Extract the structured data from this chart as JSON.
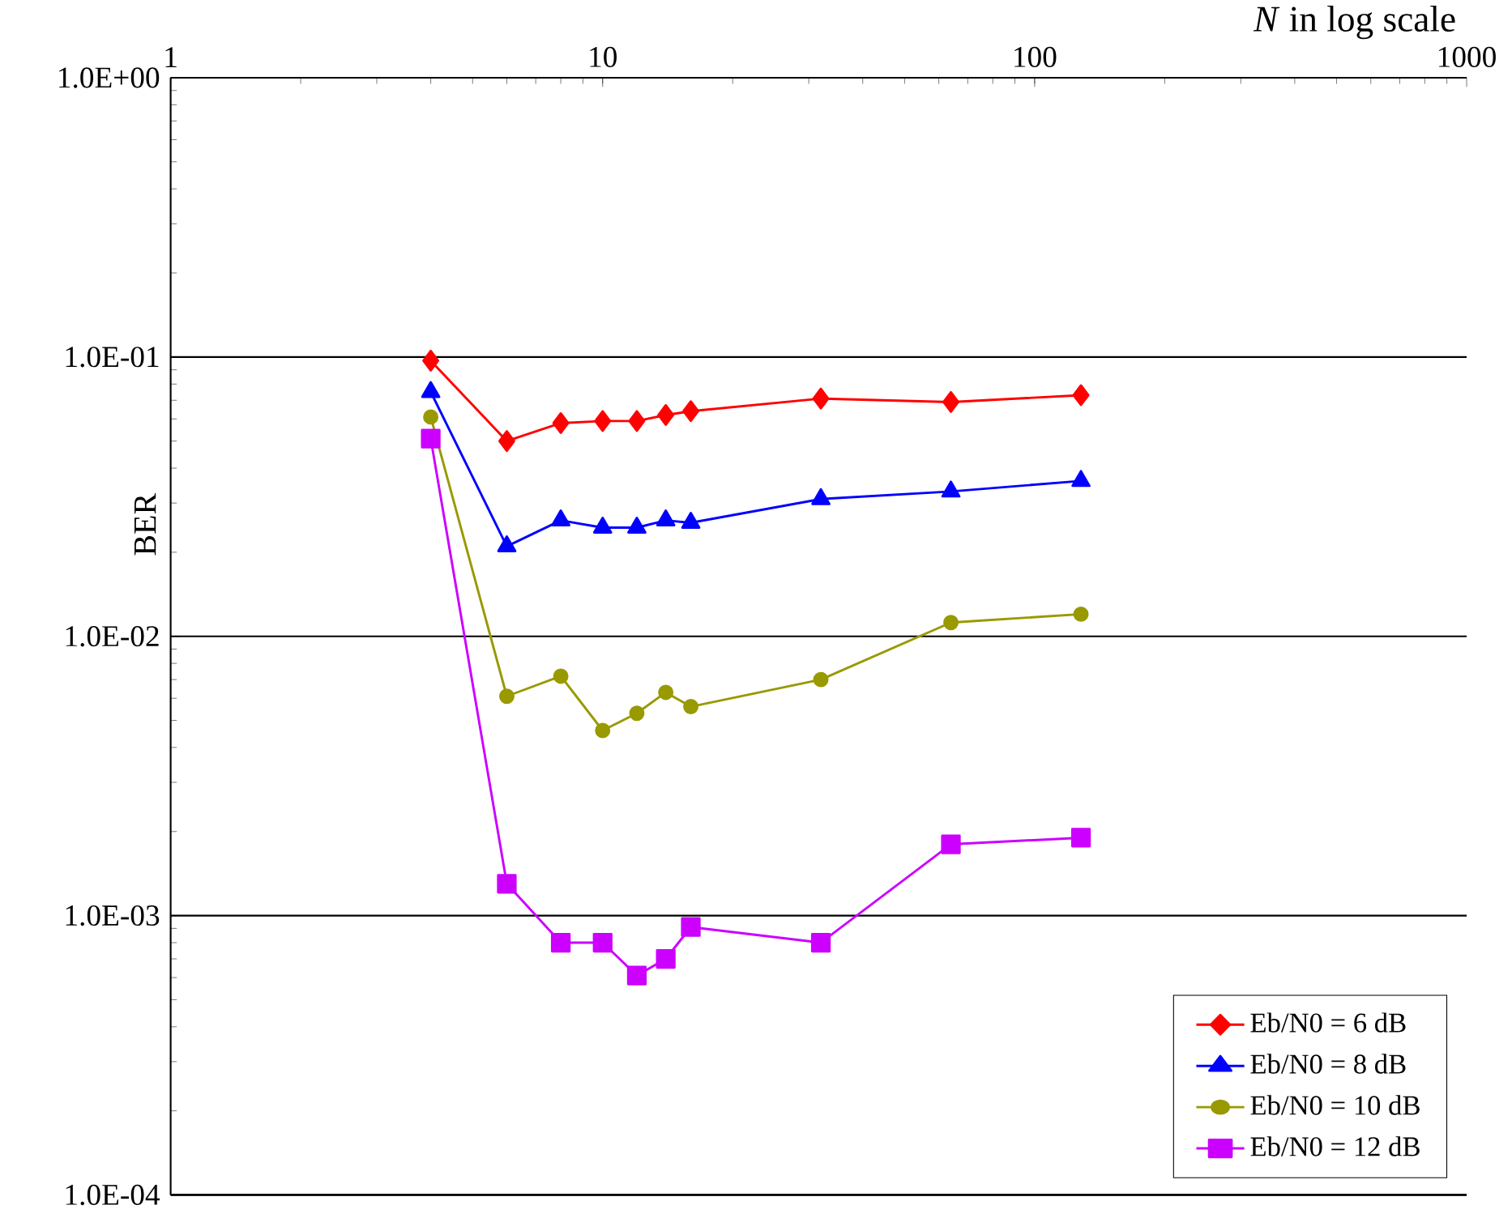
{
  "chart_data": {
    "type": "line",
    "xlabel": "*N* in log scale",
    "ylabel": "BER",
    "log": "xy",
    "grid": "y",
    "legend": "bottom right",
    "x": [
      4,
      6,
      8,
      10,
      12,
      14,
      16,
      32,
      64,
      128
    ],
    "xlim": [
      1,
      1000
    ],
    "xticks": [
      1,
      10,
      100,
      1000
    ],
    "ylim": [
      0.0001,
      1
    ],
    "yticks": [
      {
        "value": 0.0001,
        "label": "1.0E-04"
      },
      {
        "value": 0.001,
        "label": "1.0E-03"
      },
      {
        "value": 0.01,
        "label": "1.0E-02"
      },
      {
        "value": 0.1,
        "label": "1.0E-01"
      },
      {
        "value": 1,
        "label": "1.0E+00"
      }
    ],
    "series": [
      {
        "name": "Eb/N0 = 6 dB",
        "color": "#ff0000",
        "marker": "diamond",
        "values": [
          0.097,
          0.05,
          0.058,
          0.059,
          0.059,
          0.062,
          0.064,
          0.071,
          0.069,
          0.073
        ]
      },
      {
        "name": "Eb/N0 = 8 dB",
        "color": "#0000ff",
        "marker": "triangle",
        "values": [
          0.075,
          0.021,
          0.026,
          0.0245,
          0.0245,
          0.026,
          0.0255,
          0.031,
          0.033,
          0.036
        ]
      },
      {
        "name": "Eb/N0 = 10 dB",
        "color": "#999900",
        "marker": "circle",
        "values": [
          0.061,
          0.0061,
          0.0072,
          0.0046,
          0.0053,
          0.0063,
          0.0056,
          0.007,
          0.0112,
          0.012
        ]
      },
      {
        "name": "Eb/N0 = 12 dB",
        "color": "#cc00ff",
        "marker": "square",
        "values": [
          0.051,
          0.0013,
          0.0008,
          0.0008,
          0.00061,
          0.0007,
          0.00091,
          0.0008,
          0.0018,
          0.0019
        ]
      }
    ]
  }
}
